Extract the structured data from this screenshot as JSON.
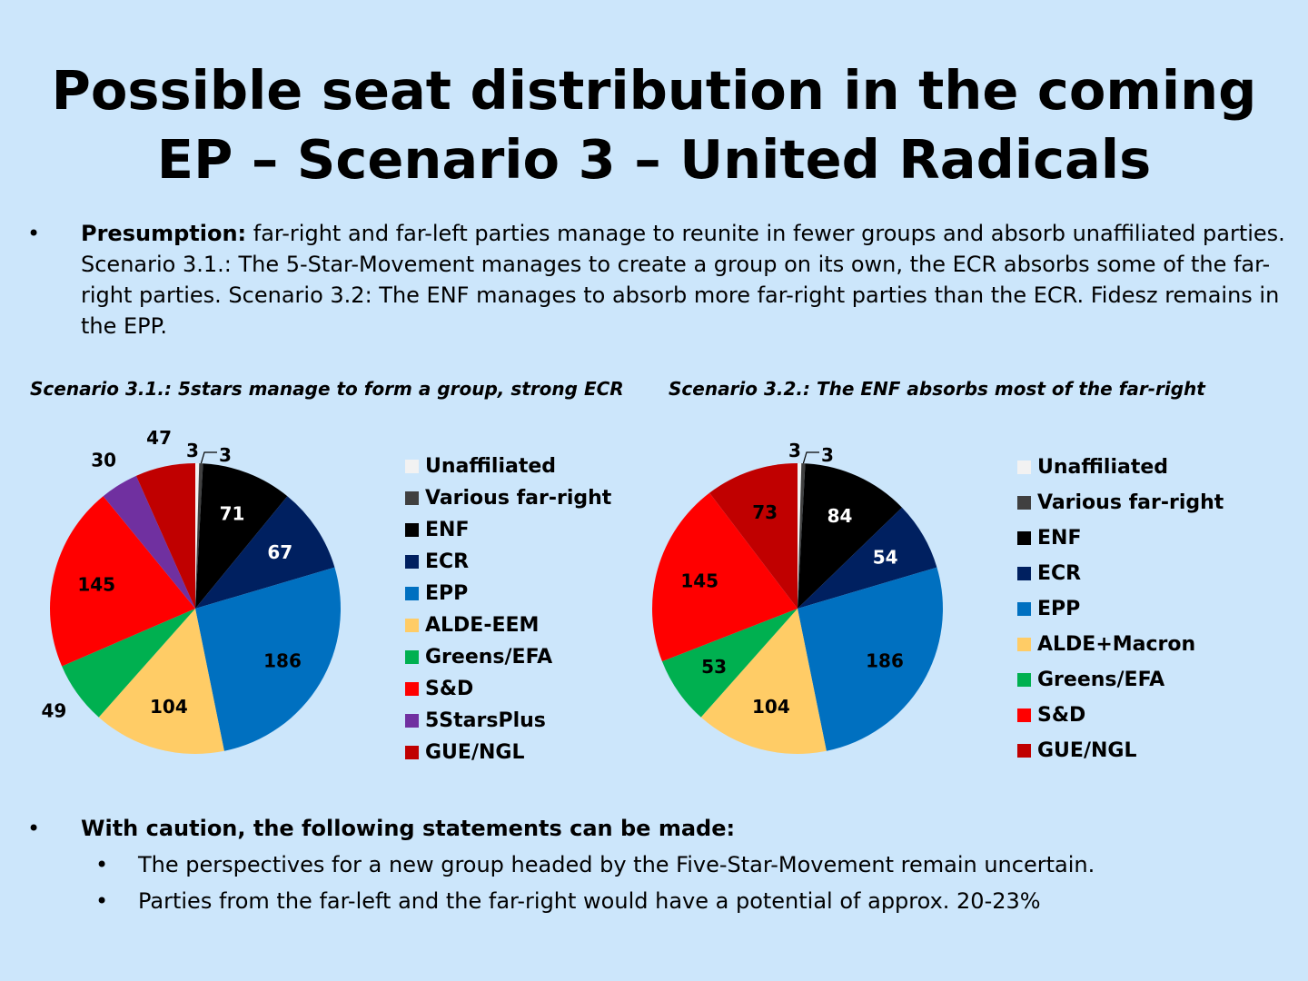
{
  "title": {
    "line1": "Possible seat distribution in the coming",
    "line2": "EP – Scenario 3 – United Radicals"
  },
  "presumption": {
    "bullet": "•",
    "label": "Presumption:",
    "text": " far-right and far-left parties manage to reunite in fewer groups and absorb unaffiliated parties. Scenario 3.1.: The 5-Star-Movement manages to create a group on its own, the ECR absorbs some of the far-right parties. Scenario 3.2: The ENF manages to absorb more far-right parties than the ECR. Fidesz remains in the EPP."
  },
  "chart_data": [
    {
      "type": "pie",
      "title": "Scenario 3.1.: 5stars manage to form a group, strong ECR",
      "categories": [
        "Unaffiliated",
        "Various far-right",
        "ENF",
        "ECR",
        "EPP",
        "ALDE-EEM",
        "Greens/EFA",
        "S&D",
        "5StarsPlus",
        "GUE/NGL"
      ],
      "values": [
        3,
        3,
        71,
        67,
        186,
        104,
        49,
        145,
        30,
        47
      ],
      "colors": [
        "#f2f2f2",
        "#404040",
        "#000000",
        "#002060",
        "#0070c0",
        "#ffcc66",
        "#00b050",
        "#ff0000",
        "#7030a0",
        "#c00000"
      ],
      "label_colors": [
        "#000000",
        "#000000",
        "#ffffff",
        "#ffffff",
        "#000000",
        "#000000",
        "#000000",
        "#000000",
        "#000000",
        "#000000"
      ],
      "legend_position": "right"
    },
    {
      "type": "pie",
      "title": "Scenario 3.2.:  The ENF absorbs most of the far-right",
      "categories": [
        "Unaffiliated",
        "Various far-right",
        "ENF",
        "ECR",
        "EPP",
        "ALDE+Macron",
        "Greens/EFA",
        "S&D",
        "GUE/NGL"
      ],
      "values": [
        3,
        3,
        84,
        54,
        186,
        104,
        53,
        145,
        73
      ],
      "colors": [
        "#f2f2f2",
        "#404040",
        "#000000",
        "#002060",
        "#0070c0",
        "#ffcc66",
        "#00b050",
        "#ff0000",
        "#c00000"
      ],
      "label_colors": [
        "#000000",
        "#000000",
        "#ffffff",
        "#ffffff",
        "#000000",
        "#000000",
        "#000000",
        "#000000",
        "#000000"
      ],
      "legend_position": "right"
    }
  ],
  "conclusions": {
    "bullet": "•",
    "heading": "With caution, the following statements can be made:",
    "items": [
      "The perspectives for a new group headed by the Five-Star-Movement remain uncertain.",
      "Parties from the far-left and the far-right would have a potential of approx. 20-23%"
    ]
  }
}
